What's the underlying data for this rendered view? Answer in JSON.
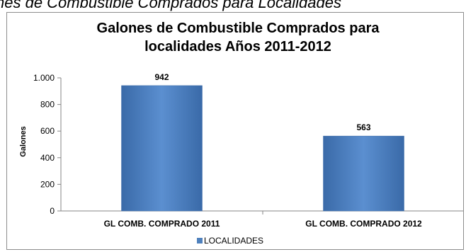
{
  "page_heading": "nes de Combustible Comprados para Localidades",
  "colors": {
    "bar": "#4f81bd",
    "bar_top": "#5b8fd0",
    "bar_bottom": "#3a6aa8",
    "axis": "#868686"
  },
  "chart_data": {
    "type": "bar",
    "title_line1": "Galones de Combustible Comprados para",
    "title_line2": "localidades Años 2011-2012",
    "categories": [
      "GL COMB. COMPRADO 2011",
      "GL COMB. COMPRADO 2012"
    ],
    "series": [
      {
        "name": "LOCALIDADES",
        "values": [
          942,
          563
        ]
      }
    ],
    "value_labels": [
      "942",
      "563"
    ],
    "ylabel": "Galones",
    "xlabel": "",
    "ylim": [
      0,
      1000
    ],
    "yticks": [
      0,
      200,
      400,
      600,
      800,
      1000
    ],
    "ytick_labels": [
      "0",
      "200",
      "400",
      "600",
      "800",
      "1.000"
    ],
    "grid": false,
    "legend_position": "bottom"
  }
}
